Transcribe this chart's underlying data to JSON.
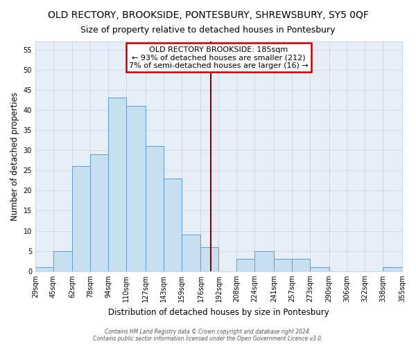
{
  "title": "OLD RECTORY, BROOKSIDE, PONTESBURY, SHREWSBURY, SY5 0QF",
  "subtitle": "Size of property relative to detached houses in Pontesbury",
  "xlabel": "Distribution of detached houses by size in Pontesbury",
  "ylabel": "Number of detached properties",
  "bin_edges": [
    29,
    45,
    62,
    78,
    94,
    110,
    127,
    143,
    159,
    176,
    192,
    208,
    224,
    241,
    257,
    273,
    290,
    306,
    322,
    338,
    355
  ],
  "bin_labels": [
    "29sqm",
    "45sqm",
    "62sqm",
    "78sqm",
    "94sqm",
    "110sqm",
    "127sqm",
    "143sqm",
    "159sqm",
    "176sqm",
    "192sqm",
    "208sqm",
    "224sqm",
    "241sqm",
    "257sqm",
    "273sqm",
    "290sqm",
    "306sqm",
    "322sqm",
    "338sqm",
    "355sqm"
  ],
  "counts": [
    1,
    5,
    26,
    29,
    43,
    41,
    31,
    23,
    9,
    6,
    0,
    3,
    5,
    3,
    3,
    1,
    0,
    0,
    0,
    1
  ],
  "bar_color": "#c8dff0",
  "bar_edge_color": "#5b9bd5",
  "reference_line_x": 185,
  "reference_line_color": "#8b0000",
  "ylim": [
    0,
    57
  ],
  "yticks": [
    0,
    5,
    10,
    15,
    20,
    25,
    30,
    35,
    40,
    45,
    50,
    55
  ],
  "annotation_title": "OLD RECTORY BROOKSIDE: 185sqm",
  "annotation_line1": "← 93% of detached houses are smaller (212)",
  "annotation_line2": "7% of semi-detached houses are larger (16) →",
  "annotation_box_color": "#ffffff",
  "annotation_box_edge": "#c00000",
  "footer_line1": "Contains HM Land Registry data © Crown copyright and database right 2024.",
  "footer_line2": "Contains public sector information licensed under the Open Government Licence v3.0.",
  "title_fontsize": 10,
  "subtitle_fontsize": 9,
  "axis_label_fontsize": 8.5,
  "tick_fontsize": 7,
  "annotation_fontsize": 8,
  "footer_fontsize": 5.5,
  "grid_color": "#c8d4e8",
  "bg_color": "#e8eef8"
}
